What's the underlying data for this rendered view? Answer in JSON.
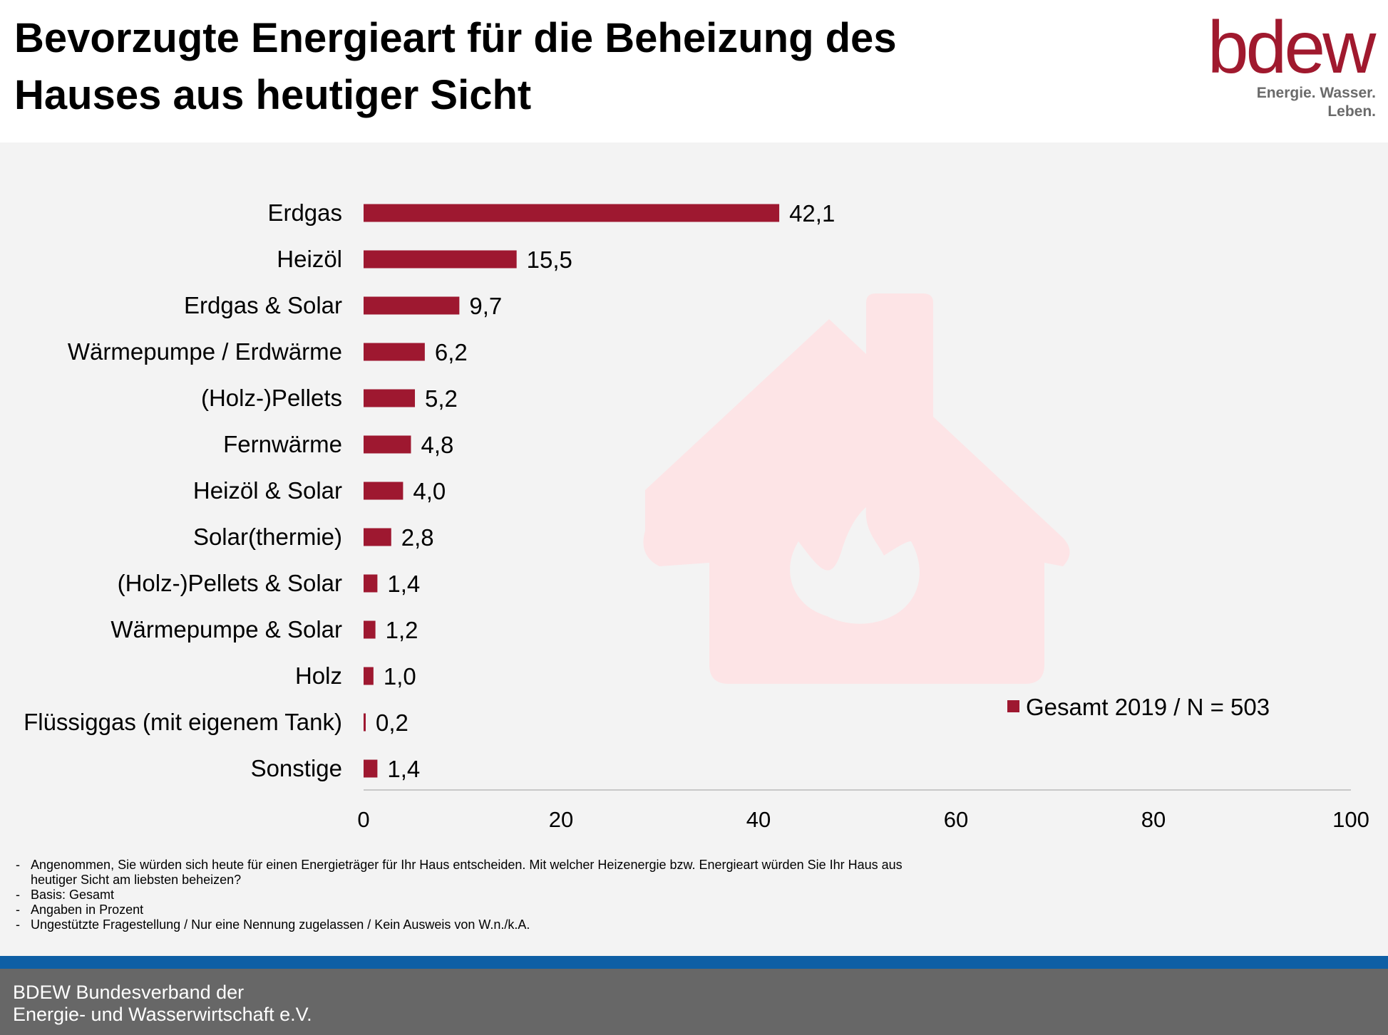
{
  "header": {
    "title_line1": "Bevorzugte Energieart für die Beheizung des",
    "title_line2": "Hauses aus heutiger Sicht",
    "logo_text": "bdew",
    "logo_slogan": "Energie. Wasser. Leben."
  },
  "colors": {
    "bar": "#9e1830",
    "watermark": "#fde4e6",
    "footer_stripe": "#0e5fa5",
    "footer": "#676767",
    "axis": "#c8c8c8"
  },
  "chart_data": {
    "type": "bar",
    "orientation": "horizontal",
    "categories": [
      "Erdgas",
      "Heizöl",
      "Erdgas & Solar",
      "Wärmepumpe / Erdwärme",
      "(Holz-)Pellets",
      "Fernwärme",
      "Heizöl & Solar",
      "Solar(thermie)",
      "(Holz-)Pellets & Solar",
      "Wärmepumpe & Solar",
      "Holz",
      "Flüssiggas (mit eigenem Tank)",
      "Sonstige"
    ],
    "series": [
      {
        "name": "Gesamt 2019 / N = 503",
        "values": [
          42.1,
          15.5,
          9.7,
          6.2,
          5.2,
          4.8,
          4.0,
          2.8,
          1.4,
          1.2,
          1.0,
          0.2,
          1.4
        ],
        "labels": [
          "42,1",
          "15,5",
          "9,7",
          "6,2",
          "5,2",
          "4,8",
          "4,0",
          "2,8",
          "1,4",
          "1,2",
          "1,0",
          "0,2",
          "1,4"
        ]
      }
    ],
    "xlim": [
      0,
      100
    ],
    "xticks": [
      0,
      20,
      40,
      60,
      80,
      100
    ],
    "xtick_labels": [
      "0",
      "20",
      "40",
      "60",
      "80",
      "100"
    ],
    "grid": false,
    "legend_position": "bottom-right"
  },
  "notes": [
    "Angenommen, Sie würden sich heute für einen Energieträger für Ihr Haus entscheiden. Mit welcher Heizenergie bzw. Energieart würden Sie Ihr Haus aus heutiger Sicht am liebsten beheizen?",
    "Basis: Gesamt",
    "Angaben in Prozent",
    "Ungestützte Fragestellung / Nur eine Nennung zugelassen / Kein Ausweis von W.n./k.A."
  ],
  "footer": {
    "line1": "BDEW Bundesverband der",
    "line2": "Energie- und Wasserwirtschaft e.V."
  }
}
